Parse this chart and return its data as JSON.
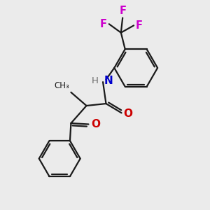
{
  "bg_color": "#ebebeb",
  "bond_color": "#1a1a1a",
  "O_color": "#cc0000",
  "N_color": "#0000cc",
  "H_color": "#6a6a6a",
  "F_color": "#cc00cc",
  "figsize": [
    3.0,
    3.0
  ],
  "dpi": 100,
  "xlim": [
    0,
    10
  ],
  "ylim": [
    0,
    10
  ]
}
